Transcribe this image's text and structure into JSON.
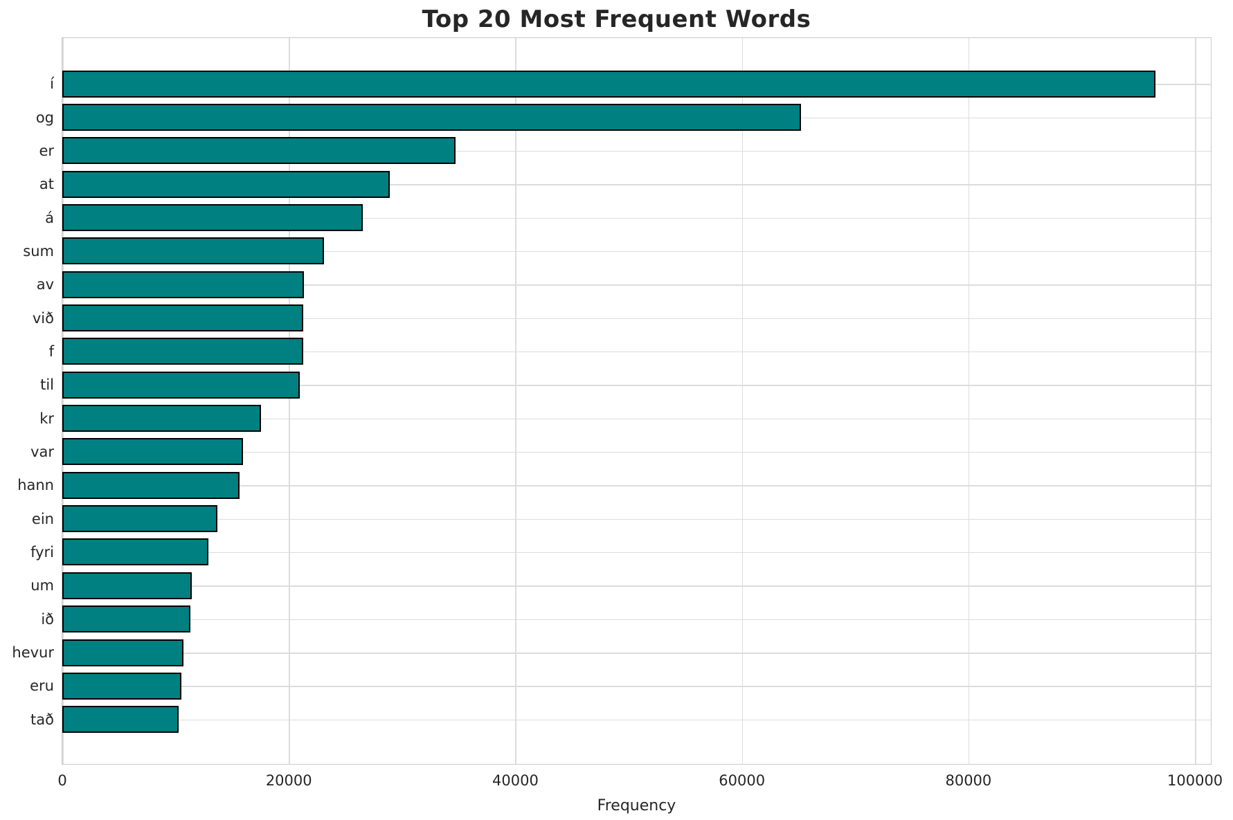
{
  "title": "Top 20 Most Frequent Words",
  "xlabel": "Frequency",
  "colors": {
    "bar_fill": "#008080",
    "bar_edge": "#000000",
    "grid": "#dcdcdc",
    "spine": "#c9c9c9",
    "text": "#262626",
    "background": "#ffffff"
  },
  "chart_data": {
    "type": "bar",
    "orientation": "horizontal",
    "title": "Top 20 Most Frequent Words",
    "xlabel": "Frequency",
    "ylabel": "",
    "categories": [
      "í",
      "og",
      "er",
      "at",
      "á",
      "sum",
      "av",
      "við",
      "f",
      "til",
      "kr",
      "var",
      "hann",
      "ein",
      "fyri",
      "um",
      "ið",
      "hevur",
      "eru",
      "tað"
    ],
    "values": [
      96500,
      65200,
      34700,
      28900,
      26500,
      23100,
      21350,
      21300,
      21250,
      20950,
      17550,
      15950,
      15650,
      13700,
      12900,
      11450,
      11300,
      10700,
      10500,
      10250
    ],
    "xlim": [
      0,
      101400
    ],
    "xticks": [
      0,
      20000,
      40000,
      60000,
      80000,
      100000
    ],
    "grid": "both",
    "legend": "none",
    "bar_color": "#008080",
    "bar_edge_color": "#000000"
  }
}
